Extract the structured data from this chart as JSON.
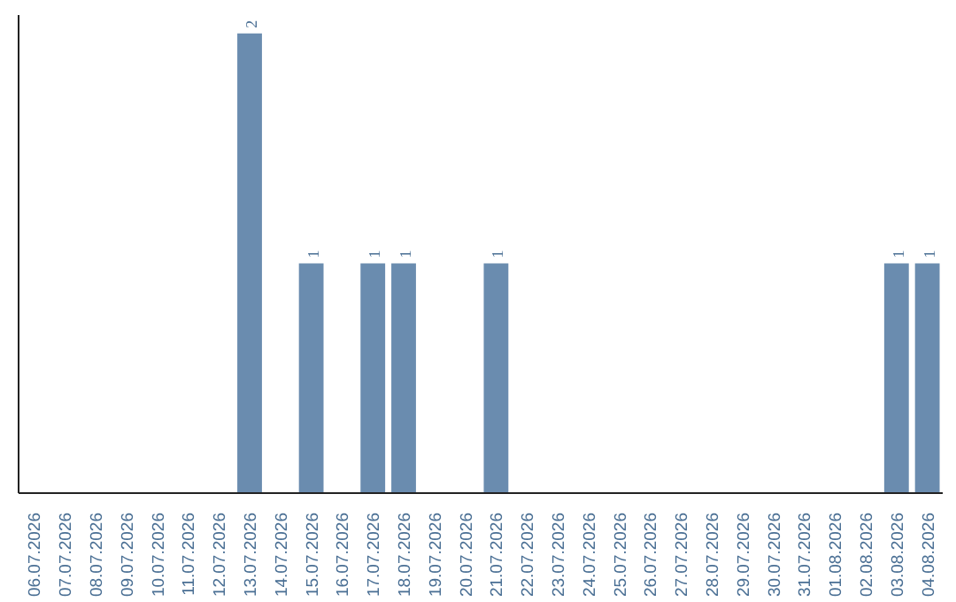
{
  "chart_data": {
    "type": "bar",
    "categories": [
      "06.07.2026",
      "07.07.2026",
      "08.07.2026",
      "09.07.2026",
      "10.07.2026",
      "11.07.2026",
      "12.07.2026",
      "13.07.2026",
      "14.07.2026",
      "15.07.2026",
      "16.07.2026",
      "17.07.2026",
      "18.07.2026",
      "19.07.2026",
      "20.07.2026",
      "21.07.2026",
      "22.07.2026",
      "23.07.2026",
      "24.07.2026",
      "25.07.2026",
      "26.07.2026",
      "27.07.2026",
      "28.07.2026",
      "29.07.2026",
      "30.07.2026",
      "31.07.2026",
      "01.08.2026",
      "02.08.2026",
      "03.08.2026",
      "04.08.2026"
    ],
    "values": [
      0,
      0,
      0,
      0,
      0,
      0,
      0,
      2,
      0,
      1,
      0,
      1,
      1,
      0,
      0,
      1,
      0,
      0,
      0,
      0,
      0,
      0,
      0,
      0,
      0,
      0,
      0,
      0,
      1,
      1
    ],
    "value_labels": [
      null,
      null,
      null,
      null,
      null,
      null,
      null,
      "2",
      null,
      "1",
      null,
      "1",
      "1",
      null,
      null,
      "1",
      null,
      null,
      null,
      null,
      null,
      null,
      null,
      null,
      null,
      null,
      null,
      null,
      "1",
      "1"
    ],
    "color": "#6a8caf",
    "tick_labels": "x",
    "grid": false
  }
}
